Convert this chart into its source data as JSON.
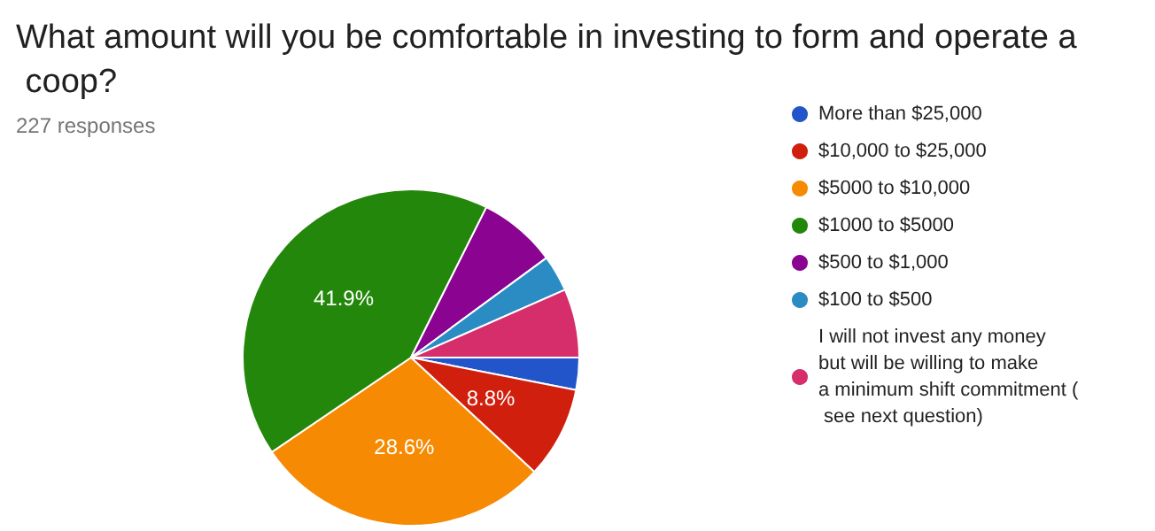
{
  "chart_data": {
    "type": "pie",
    "title": "What amount will you be comfortable in investing to form and operate a coop?",
    "subtitle": "227 responses",
    "categories": [
      "More than $25,000",
      "$10,000 to $25,000",
      "$5000 to $10,000",
      "$1000 to $5000",
      "$500 to $1,000",
      "$100 to $500",
      "I will not invest any money but will be willing to make a minimum shift commitment ( see next question)"
    ],
    "values": [
      3.1,
      8.8,
      28.6,
      41.9,
      7.5,
      3.5,
      6.6
    ],
    "colors": [
      "#2255c9",
      "#d11f0e",
      "#f78a03",
      "#23870b",
      "#8a0491",
      "#2b8cc4",
      "#d62d6b"
    ],
    "value_labels": [
      null,
      "8.8%",
      "28.6%",
      "41.9%",
      null,
      null,
      null
    ],
    "legend": "right"
  }
}
